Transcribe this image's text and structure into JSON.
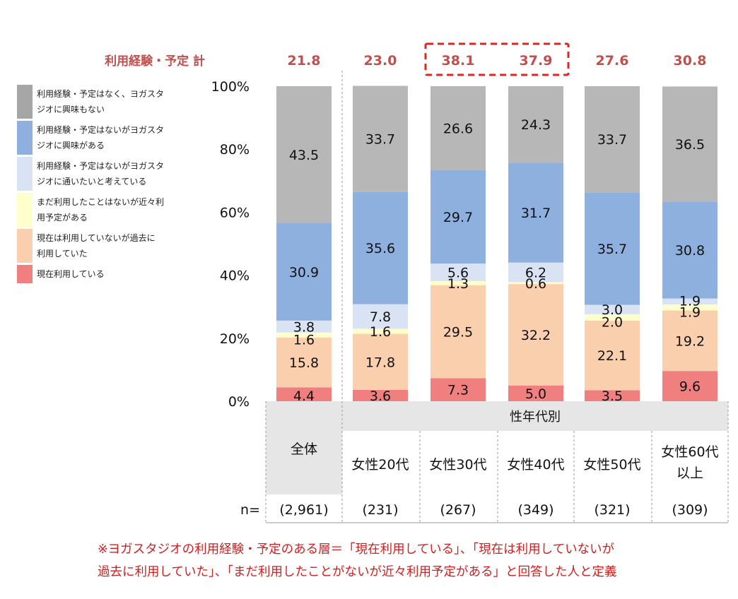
{
  "chart_data": {
    "type": "stacked-bar-100",
    "total_label": "利用経験・予定 計",
    "totals": [
      "21.8",
      "23.0",
      "38.1",
      "37.9",
      "27.6",
      "30.8"
    ],
    "y_ticks": [
      "0%",
      "20%",
      "40%",
      "60%",
      "80%",
      "100%"
    ],
    "ylim": [
      0,
      100
    ],
    "group_label": "性年代別",
    "categories": [
      {
        "label": "全体",
        "n": "(2,961)"
      },
      {
        "label": "女性20代",
        "n": "(231)"
      },
      {
        "label": "女性30代",
        "n": "(267)"
      },
      {
        "label": "女性40代",
        "n": "(349)"
      },
      {
        "label": "女性50代",
        "n": "(321)"
      },
      {
        "label": "女性60代以上",
        "label_lines": [
          "女性60代",
          "以上"
        ],
        "n": "(309)"
      }
    ],
    "n_label": "n=",
    "series": [
      {
        "name": "現在利用している",
        "color": "#f08080",
        "values": [
          4.4,
          3.6,
          7.3,
          5.0,
          3.5,
          9.6
        ]
      },
      {
        "name": "現在は利用していないが過去に利用していた",
        "color": "#f9cfae",
        "values": [
          15.8,
          17.8,
          29.5,
          32.2,
          22.1,
          19.2
        ]
      },
      {
        "name": "まだ利用したことはないが近々利用予定がある",
        "color": "#ffffcc",
        "values": [
          1.6,
          1.6,
          1.3,
          0.6,
          2.0,
          1.9
        ]
      },
      {
        "name": "利用経験・予定はないがヨガスタジオに通いたいと考えている",
        "color": "#d9e3f3",
        "values": [
          3.8,
          7.8,
          5.6,
          6.2,
          3.0,
          1.9
        ]
      },
      {
        "name": "利用経験・予定はないがヨガスタジオに興味がある",
        "color": "#8eb0de",
        "values": [
          30.9,
          35.6,
          29.7,
          31.7,
          35.7,
          30.8
        ]
      },
      {
        "name": "利用経験・予定はなく、ヨガスタジオに興味もない",
        "color": "#b7b7b7",
        "values": [
          43.5,
          33.7,
          26.6,
          24.3,
          33.7,
          36.5
        ]
      }
    ]
  },
  "legend": [
    {
      "name": "series-no-interest",
      "lines": [
        "利用経験・予定はなく、ヨガスタ",
        "ジオに興味もない"
      ],
      "color": "#a6a6a6"
    },
    {
      "name": "series-interested",
      "lines": [
        "利用経験・予定はないがヨガスタ",
        "ジオに興味がある"
      ],
      "color": "#8eb0de"
    },
    {
      "name": "series-want-to-attend",
      "lines": [
        "利用経験・予定はないがヨガスタ",
        "ジオに通いたいと考えている"
      ],
      "color": "#d9e3f3"
    },
    {
      "name": "series-planning",
      "lines": [
        "まだ利用したことはないが近々利",
        "用予定がある"
      ],
      "color": "#ffffcc"
    },
    {
      "name": "series-past-use",
      "lines": [
        "現在は利用していないが過去に",
        "利用していた"
      ],
      "color": "#f9cfae"
    },
    {
      "name": "series-current-use",
      "lines": [
        "現在利用している"
      ],
      "color": "#f08080"
    }
  ],
  "footnote": {
    "line1": "※ヨガスタジオの利用経験・予定のある層＝「現在利用している」、「現在は利用していないが",
    "line2": "過去に利用していた」、「まだ利用したことがないが近々利用予定がある」と回答した人と定義"
  },
  "colors": {
    "accent_red": "#c0504d",
    "note_red": "#d01f1f",
    "highlight_box": "#e0261e",
    "header_fill": "#e6e6e6"
  }
}
